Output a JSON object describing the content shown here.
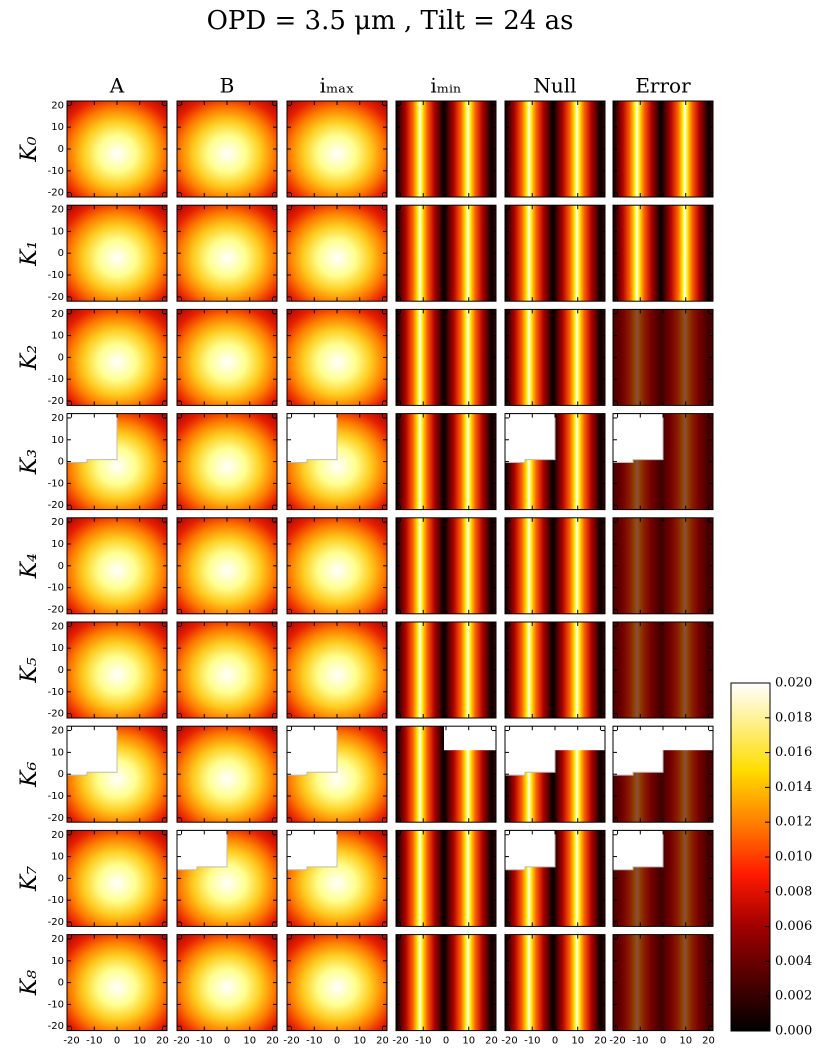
{
  "chart_data": {
    "type": "heatmap",
    "title": "OPD = 3.5 μm , Tilt = 24 as",
    "columns": [
      "A",
      "B",
      "iₘₐₓ",
      "iₘᵢₙ",
      "Null",
      "Error"
    ],
    "rows": [
      "K₀",
      "K₁",
      "K₂",
      "K₃",
      "K₄",
      "K₅",
      "K₆",
      "K₇",
      "K₈"
    ],
    "xlim": [
      -22,
      22
    ],
    "ylim": [
      -22,
      22
    ],
    "xticks": [
      -20,
      -10,
      0,
      10,
      20
    ],
    "yticks": [
      -20,
      -10,
      0,
      10,
      20
    ],
    "zlim": [
      0,
      0.02
    ],
    "zticks": [
      {
        "value": 0,
        "label": "0.000"
      },
      {
        "value": 0.002,
        "label": "0.002"
      },
      {
        "value": 0.004,
        "label": "0.004"
      },
      {
        "value": 0.006,
        "label": "0.006"
      },
      {
        "value": 0.008,
        "label": "0.008"
      },
      {
        "value": 0.01,
        "label": "0.010"
      },
      {
        "value": 0.012,
        "label": "0.012"
      },
      {
        "value": 0.014,
        "label": "0.014"
      },
      {
        "value": 0.016,
        "label": "0.016"
      },
      {
        "value": 0.018,
        "label": "0.018"
      },
      {
        "value": 0.02,
        "label": "0.020"
      }
    ]
  }
}
